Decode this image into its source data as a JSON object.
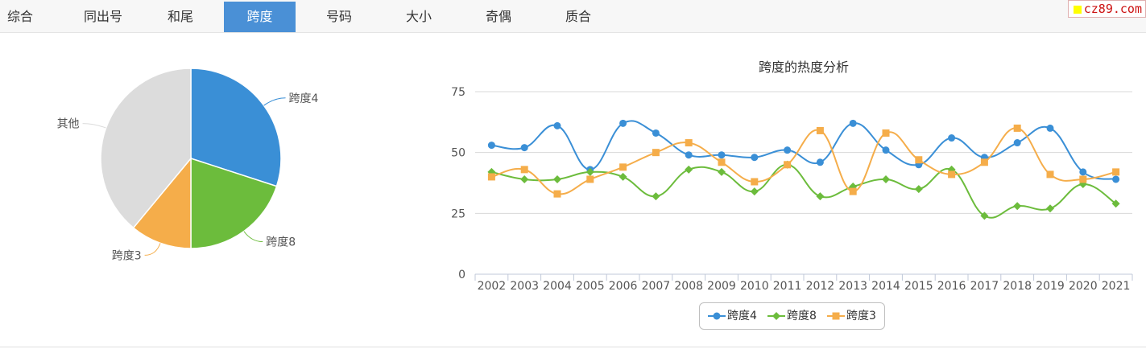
{
  "tabs": [
    {
      "label": "综合",
      "active": false
    },
    {
      "label": "同出号",
      "active": false
    },
    {
      "label": "和尾",
      "active": false
    },
    {
      "label": "跨度",
      "active": true
    },
    {
      "label": "号码",
      "active": false
    },
    {
      "label": "大小",
      "active": false
    },
    {
      "label": "奇偶",
      "active": false
    },
    {
      "label": "质合",
      "active": false
    }
  ],
  "brand": {
    "text": "cz89.com"
  },
  "colors": {
    "series1": "#3a8fd6",
    "series2": "#6cbc3c",
    "series3": "#f5ad4a",
    "other": "#dcdcdc",
    "tab_active": "#4a90d6"
  },
  "chart_data": [
    {
      "type": "pie",
      "slices": [
        {
          "label": "跨度4",
          "value": 30
        },
        {
          "label": "跨度8",
          "value": 20
        },
        {
          "label": "跨度3",
          "value": 11
        },
        {
          "label": "其他",
          "value": 39
        }
      ]
    },
    {
      "type": "line",
      "title": "跨度的热度分析",
      "x": [
        "2002",
        "2003",
        "2004",
        "2005",
        "2006",
        "2007",
        "2008",
        "2009",
        "2010",
        "2011",
        "2012",
        "2013",
        "2014",
        "2015",
        "2016",
        "2017",
        "2018",
        "2019",
        "2020",
        "2021"
      ],
      "ylim": [
        0,
        75
      ],
      "yticks": [
        "0",
        "25",
        "50",
        "75"
      ],
      "grid": true,
      "legend_position": "bottom-center",
      "series": [
        {
          "name": "跨度4",
          "marker": "circle",
          "values": [
            53,
            52,
            61,
            43,
            62,
            58,
            49,
            49,
            48,
            51,
            46,
            62,
            51,
            45,
            56,
            48,
            54,
            60,
            42,
            39
          ]
        },
        {
          "name": "跨度8",
          "marker": "diamond",
          "values": [
            42,
            39,
            39,
            42,
            40,
            32,
            43,
            42,
            34,
            45,
            32,
            36,
            39,
            35,
            43,
            24,
            28,
            27,
            37,
            29
          ]
        },
        {
          "name": "跨度3",
          "marker": "square",
          "values": [
            40,
            43,
            33,
            39,
            44,
            50,
            54,
            46,
            38,
            45,
            59,
            34,
            58,
            47,
            41,
            46,
            60,
            41,
            39,
            42
          ]
        }
      ]
    }
  ]
}
